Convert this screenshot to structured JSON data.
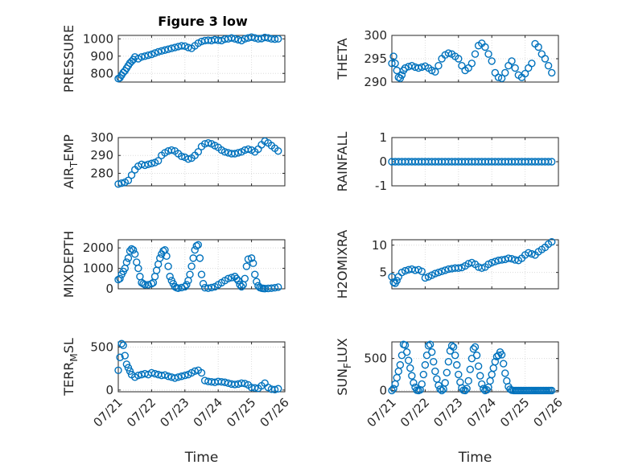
{
  "title": "Figure 3 low",
  "x_ticks": [
    "07/21",
    "07/22",
    "07/23",
    "07/24",
    "07/25",
    "07/26"
  ],
  "x_label": "Time",
  "colors": {
    "marker": "#0072BD",
    "axis": "#262626",
    "grid": "#dcdcdc"
  },
  "chart_data": [
    {
      "type": "scatter",
      "ylabel": "PRESSURE",
      "ylabel_sub": "",
      "xlim": [
        0,
        5
      ],
      "ylim": [
        750,
        1020
      ],
      "yticks": [
        800,
        900,
        1000
      ],
      "x": [
        0.0,
        0.05,
        0.1,
        0.15,
        0.2,
        0.25,
        0.3,
        0.35,
        0.4,
        0.45,
        0.5,
        0.6,
        0.7,
        0.8,
        0.9,
        1.0,
        1.1,
        1.2,
        1.3,
        1.4,
        1.5,
        1.6,
        1.7,
        1.8,
        1.9,
        2.0,
        2.1,
        2.2,
        2.3,
        2.4,
        2.5,
        2.6,
        2.7,
        2.8,
        2.9,
        3.0,
        3.1,
        3.2,
        3.3,
        3.4,
        3.5,
        3.6,
        3.7,
        3.8,
        3.9,
        4.0,
        4.1,
        4.2,
        4.3,
        4.4,
        4.5,
        4.6,
        4.7,
        4.8
      ],
      "y": [
        770,
        775,
        790,
        805,
        815,
        830,
        845,
        860,
        870,
        880,
        895,
        885,
        895,
        900,
        905,
        910,
        918,
        925,
        930,
        935,
        940,
        945,
        950,
        955,
        960,
        958,
        950,
        945,
        960,
        975,
        985,
        990,
        992,
        990,
        995,
        992,
        990,
        998,
        1000,
        1005,
        1000,
        995,
        990,
        1000,
        1005,
        1010,
        1005,
        1000,
        1002,
        1008,
        1005,
        1000,
        998,
        1000
      ]
    },
    {
      "type": "scatter",
      "ylabel": "THETA",
      "ylabel_sub": "",
      "xlim": [
        0,
        5
      ],
      "ylim": [
        290,
        300
      ],
      "yticks": [
        290,
        295,
        300
      ],
      "x": [
        0.0,
        0.05,
        0.1,
        0.15,
        0.2,
        0.25,
        0.3,
        0.35,
        0.4,
        0.5,
        0.6,
        0.7,
        0.8,
        0.9,
        1.0,
        1.1,
        1.2,
        1.3,
        1.4,
        1.5,
        1.6,
        1.7,
        1.8,
        1.9,
        2.0,
        2.1,
        2.2,
        2.3,
        2.4,
        2.5,
        2.6,
        2.7,
        2.8,
        2.9,
        3.0,
        3.1,
        3.2,
        3.3,
        3.4,
        3.5,
        3.6,
        3.7,
        3.8,
        3.9,
        4.0,
        4.1,
        4.2,
        4.3,
        4.4,
        4.5,
        4.6,
        4.7,
        4.8
      ],
      "y": [
        294,
        295.5,
        294,
        292.5,
        291,
        290.8,
        291.5,
        292.5,
        293,
        293.3,
        293.5,
        293.2,
        293,
        293.2,
        293.4,
        293,
        292.5,
        292.2,
        293.5,
        295,
        295.8,
        296.2,
        296,
        295.5,
        295,
        293.5,
        292.5,
        293,
        294,
        296,
        297.8,
        298.3,
        297.5,
        296,
        294.5,
        292,
        291,
        290.8,
        292,
        293.5,
        294.5,
        293,
        291.5,
        291,
        291.8,
        293,
        294,
        298.2,
        297.5,
        296,
        295,
        293.5,
        292
      ]
    },
    {
      "type": "scatter",
      "ylabel": "AIR",
      "ylabel_sub": "T",
      "ylabel_rest": "EMP",
      "xlim": [
        0,
        5
      ],
      "ylim": [
        273,
        300
      ],
      "yticks": [
        280,
        290,
        300
      ],
      "x": [
        0.0,
        0.1,
        0.2,
        0.3,
        0.4,
        0.5,
        0.6,
        0.7,
        0.8,
        0.9,
        1.0,
        1.1,
        1.2,
        1.3,
        1.4,
        1.5,
        1.6,
        1.7,
        1.8,
        1.9,
        2.0,
        2.1,
        2.2,
        2.3,
        2.4,
        2.5,
        2.6,
        2.7,
        2.8,
        2.9,
        3.0,
        3.1,
        3.2,
        3.3,
        3.4,
        3.5,
        3.6,
        3.7,
        3.8,
        3.9,
        4.0,
        4.1,
        4.2,
        4.3,
        4.4,
        4.5,
        4.6,
        4.7,
        4.8
      ],
      "y": [
        274,
        274.5,
        275,
        276,
        279,
        282,
        284,
        285,
        284.5,
        285,
        285.5,
        286,
        287,
        290,
        291.5,
        292.5,
        293,
        292.5,
        291,
        289.5,
        289,
        288,
        288.5,
        290,
        292,
        295,
        296.5,
        297,
        296.5,
        295.5,
        294.5,
        293,
        292,
        291.5,
        291,
        291,
        291.5,
        292,
        293,
        293.5,
        293,
        292,
        293.5,
        296,
        298,
        297,
        295.5,
        294,
        292.5
      ]
    },
    {
      "type": "scatter",
      "ylabel": "RAINFALL",
      "ylabel_sub": "",
      "xlim": [
        0,
        5
      ],
      "ylim": [
        -1,
        1
      ],
      "yticks": [
        -1,
        0,
        1
      ],
      "x": [
        0.0,
        0.1,
        0.2,
        0.3,
        0.4,
        0.5,
        0.6,
        0.7,
        0.8,
        0.9,
        1.0,
        1.1,
        1.2,
        1.3,
        1.4,
        1.5,
        1.6,
        1.7,
        1.8,
        1.9,
        2.0,
        2.1,
        2.2,
        2.3,
        2.4,
        2.5,
        2.6,
        2.7,
        2.8,
        2.9,
        3.0,
        3.1,
        3.2,
        3.3,
        3.4,
        3.5,
        3.6,
        3.7,
        3.8,
        3.9,
        4.0,
        4.1,
        4.2,
        4.3,
        4.4,
        4.5,
        4.6,
        4.7,
        4.8
      ],
      "y": [
        0,
        0,
        0,
        0,
        0,
        0,
        0,
        0,
        0,
        0,
        0,
        0,
        0,
        0,
        0,
        0,
        0,
        0,
        0,
        0,
        0,
        0,
        0,
        0,
        0,
        0,
        0,
        0,
        0,
        0,
        0,
        0,
        0,
        0,
        0,
        0,
        0,
        0,
        0,
        0,
        0,
        0,
        0,
        0,
        0,
        0,
        0,
        0,
        0
      ]
    },
    {
      "type": "scatter",
      "ylabel": "MIXDEPTH",
      "ylabel_sub": "",
      "xlim": [
        0,
        5
      ],
      "ylim": [
        0,
        2400
      ],
      "yticks": [
        0,
        1000,
        2000
      ],
      "x": [
        0.0,
        0.05,
        0.1,
        0.15,
        0.2,
        0.25,
        0.3,
        0.35,
        0.4,
        0.45,
        0.5,
        0.55,
        0.6,
        0.65,
        0.7,
        0.75,
        0.8,
        0.9,
        1.0,
        1.05,
        1.1,
        1.15,
        1.2,
        1.25,
        1.3,
        1.35,
        1.4,
        1.45,
        1.5,
        1.55,
        1.6,
        1.65,
        1.7,
        1.75,
        1.8,
        1.9,
        2.0,
        2.05,
        2.1,
        2.15,
        2.2,
        2.25,
        2.3,
        2.35,
        2.4,
        2.45,
        2.5,
        2.55,
        2.6,
        2.7,
        2.8,
        2.9,
        3.0,
        3.1,
        3.2,
        3.3,
        3.4,
        3.5,
        3.55,
        3.6,
        3.65,
        3.7,
        3.75,
        3.8,
        3.85,
        3.9,
        4.0,
        4.05,
        4.1,
        4.15,
        4.2,
        4.25,
        4.3,
        4.35,
        4.4,
        4.5,
        4.6,
        4.7,
        4.8
      ],
      "y": [
        450,
        500,
        700,
        850,
        1000,
        1300,
        1500,
        1850,
        1950,
        1900,
        1700,
        1300,
        1000,
        600,
        300,
        250,
        200,
        200,
        250,
        300,
        600,
        900,
        1200,
        1500,
        1700,
        1850,
        1900,
        1600,
        1100,
        600,
        400,
        250,
        100,
        50,
        30,
        60,
        100,
        200,
        400,
        700,
        1100,
        1500,
        1900,
        2100,
        2150,
        1500,
        700,
        250,
        50,
        30,
        60,
        100,
        200,
        300,
        400,
        500,
        550,
        600,
        500,
        400,
        200,
        100,
        200,
        500,
        1100,
        1450,
        1500,
        1250,
        700,
        350,
        150,
        60,
        30,
        20,
        10,
        20,
        30,
        50,
        80
      ]
    },
    {
      "type": "scatter",
      "ylabel": "H2OMIXRA",
      "ylabel_sub": "",
      "xlim": [
        0,
        5
      ],
      "ylim": [
        2,
        11
      ],
      "yticks": [
        5,
        10
      ],
      "x": [
        0.0,
        0.05,
        0.1,
        0.15,
        0.2,
        0.3,
        0.4,
        0.5,
        0.6,
        0.7,
        0.8,
        0.9,
        1.0,
        1.1,
        1.2,
        1.3,
        1.4,
        1.5,
        1.6,
        1.7,
        1.8,
        1.9,
        2.0,
        2.1,
        2.2,
        2.3,
        2.4,
        2.5,
        2.6,
        2.7,
        2.8,
        2.9,
        3.0,
        3.1,
        3.2,
        3.3,
        3.4,
        3.5,
        3.6,
        3.7,
        3.8,
        3.9,
        4.0,
        4.1,
        4.2,
        4.3,
        4.4,
        4.5,
        4.6,
        4.7,
        4.8
      ],
      "y": [
        4.2,
        3.2,
        3.0,
        3.5,
        4.2,
        5.0,
        5.3,
        5.5,
        5.6,
        5.4,
        5.5,
        5.2,
        4.0,
        4.2,
        4.5,
        4.8,
        5.0,
        5.2,
        5.4,
        5.6,
        5.7,
        5.8,
        5.8,
        5.9,
        6.2,
        6.6,
        6.8,
        6.5,
        6.0,
        5.8,
        6.0,
        6.5,
        6.8,
        7.0,
        7.2,
        7.3,
        7.4,
        7.6,
        7.5,
        7.3,
        7.2,
        7.6,
        8.2,
        8.6,
        8.4,
        8.2,
        8.8,
        9.2,
        9.6,
        10.2,
        10.6
      ]
    },
    {
      "type": "scatter",
      "ylabel": "TERR",
      "ylabel_sub": "M",
      "ylabel_rest": "SL",
      "xlim": [
        0,
        5
      ],
      "ylim": [
        -20,
        560
      ],
      "yticks": [
        0,
        500
      ],
      "x": [
        0.0,
        0.05,
        0.1,
        0.15,
        0.2,
        0.25,
        0.3,
        0.35,
        0.4,
        0.5,
        0.6,
        0.7,
        0.8,
        0.9,
        1.0,
        1.1,
        1.2,
        1.3,
        1.4,
        1.5,
        1.6,
        1.7,
        1.8,
        1.9,
        2.0,
        2.1,
        2.2,
        2.3,
        2.4,
        2.5,
        2.6,
        2.7,
        2.8,
        2.9,
        3.0,
        3.1,
        3.2,
        3.3,
        3.4,
        3.5,
        3.6,
        3.7,
        3.8,
        3.9,
        4.0,
        4.1,
        4.2,
        4.3,
        4.4,
        4.5,
        4.6,
        4.7,
        4.8
      ],
      "y": [
        230,
        380,
        540,
        520,
        400,
        300,
        260,
        220,
        180,
        150,
        170,
        180,
        190,
        180,
        200,
        190,
        180,
        170,
        175,
        160,
        150,
        140,
        150,
        160,
        170,
        180,
        200,
        220,
        230,
        200,
        110,
        100,
        95,
        90,
        100,
        95,
        90,
        80,
        70,
        65,
        70,
        80,
        75,
        60,
        30,
        25,
        20,
        50,
        80,
        30,
        10,
        5,
        15
      ]
    },
    {
      "type": "scatter",
      "ylabel": "SUN",
      "ylabel_sub": "F",
      "ylabel_rest": "LUX",
      "xlim": [
        0,
        5
      ],
      "ylim": [
        -20,
        760
      ],
      "yticks": [
        0,
        500
      ],
      "x": [
        0.0,
        0.05,
        0.1,
        0.15,
        0.2,
        0.25,
        0.3,
        0.35,
        0.4,
        0.45,
        0.5,
        0.55,
        0.6,
        0.65,
        0.7,
        0.75,
        0.8,
        0.85,
        0.9,
        0.95,
        1.0,
        1.05,
        1.1,
        1.15,
        1.2,
        1.25,
        1.3,
        1.35,
        1.4,
        1.45,
        1.5,
        1.55,
        1.6,
        1.65,
        1.7,
        1.75,
        1.8,
        1.85,
        1.9,
        1.95,
        2.0,
        2.05,
        2.1,
        2.15,
        2.2,
        2.25,
        2.3,
        2.35,
        2.4,
        2.45,
        2.5,
        2.55,
        2.6,
        2.65,
        2.7,
        2.75,
        2.8,
        2.85,
        2.9,
        2.95,
        3.0,
        3.05,
        3.1,
        3.15,
        3.2,
        3.25,
        3.3,
        3.35,
        3.4,
        3.45,
        3.5,
        3.55,
        3.6,
        3.65,
        3.7,
        3.75,
        3.8,
        3.85,
        3.9,
        3.95,
        4.0,
        4.05,
        4.1,
        4.15,
        4.2,
        4.25,
        4.3,
        4.35,
        4.4,
        4.45,
        4.5,
        4.55,
        4.6,
        4.65,
        4.7,
        4.75,
        4.8
      ],
      "y": [
        0,
        30,
        100,
        200,
        300,
        400,
        550,
        720,
        710,
        600,
        470,
        350,
        230,
        120,
        50,
        5,
        0,
        10,
        100,
        250,
        400,
        550,
        700,
        720,
        600,
        450,
        300,
        180,
        80,
        20,
        0,
        20,
        120,
        280,
        450,
        620,
        700,
        680,
        550,
        400,
        250,
        130,
        40,
        5,
        0,
        30,
        150,
        330,
        500,
        650,
        680,
        550,
        380,
        230,
        100,
        30,
        0,
        10,
        50,
        150,
        250,
        350,
        450,
        530,
        550,
        600,
        560,
        420,
        270,
        150,
        60,
        20,
        5,
        0,
        0,
        0,
        0,
        0,
        0,
        0,
        0,
        0,
        0,
        0,
        0,
        0,
        0,
        0,
        0,
        0,
        0,
        0,
        0,
        0,
        0,
        0,
        0
      ]
    }
  ]
}
